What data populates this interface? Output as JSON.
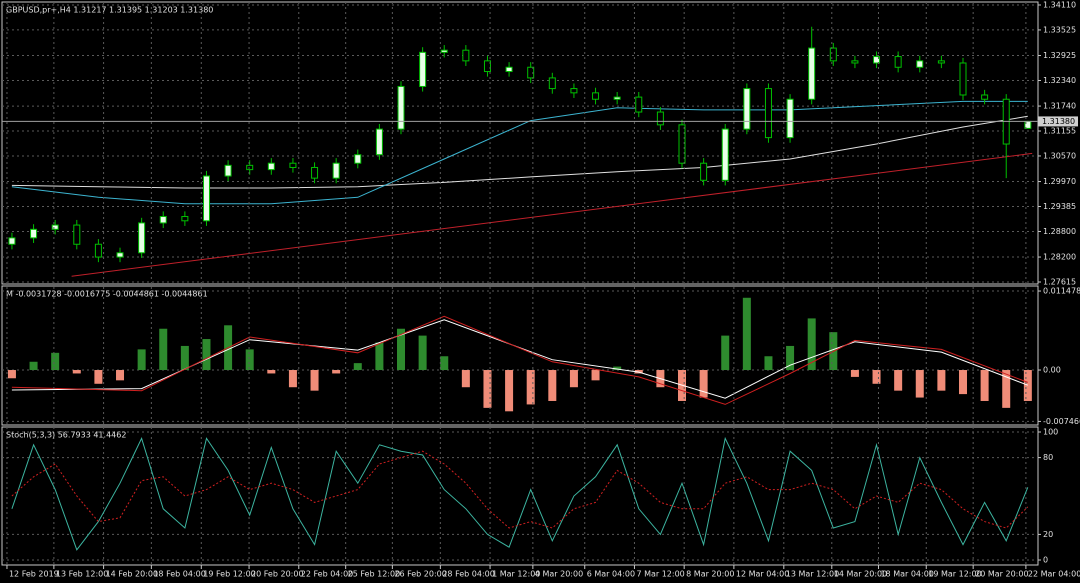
{
  "chart_data": [
    {
      "type": "candlestick",
      "title": "GBPUSD,pr+,H4  1.31217 1.31395 1.31203 1.31380",
      "open": [
        1.285,
        1.2865,
        1.2885,
        1.2895,
        1.285,
        1.282,
        1.283,
        1.29,
        1.2915,
        1.2905,
        1.301,
        1.3035,
        1.3025,
        1.304,
        1.303,
        1.3005,
        1.304,
        1.306,
        1.312,
        1.322,
        1.33,
        1.3305,
        1.328,
        1.3255,
        1.3265,
        1.324,
        1.3215,
        1.3205,
        1.319,
        1.3195,
        1.316,
        1.313,
        1.304,
        1.3,
        1.312,
        1.3215,
        1.31,
        1.319,
        1.331,
        1.328,
        1.3275,
        1.329,
        1.3265,
        1.328,
        1.3275,
        1.32,
        1.319,
        1.31217
      ],
      "high": [
        1.2877,
        1.2897,
        1.2907,
        1.2907,
        1.2862,
        1.2842,
        1.2912,
        1.2927,
        1.2927,
        1.3022,
        1.3047,
        1.3047,
        1.3052,
        1.3052,
        1.3042,
        1.3052,
        1.3072,
        1.3132,
        1.3232,
        1.3312,
        1.3317,
        1.3317,
        1.3292,
        1.3277,
        1.3277,
        1.3252,
        1.3227,
        1.3217,
        1.3207,
        1.3207,
        1.3172,
        1.3142,
        1.3052,
        1.3132,
        1.3227,
        1.3227,
        1.3202,
        1.336,
        1.3322,
        1.3292,
        1.3302,
        1.3302,
        1.3292,
        1.3292,
        1.3287,
        1.3212,
        1.3202,
        1.31395
      ],
      "low": [
        1.2838,
        1.2853,
        1.2873,
        1.2838,
        1.2808,
        1.2808,
        1.2818,
        1.2888,
        1.2893,
        1.2893,
        1.2998,
        1.3013,
        1.3013,
        1.3018,
        1.2993,
        1.2993,
        1.3028,
        1.3048,
        1.3108,
        1.3208,
        1.3288,
        1.3268,
        1.3243,
        1.3243,
        1.3228,
        1.3203,
        1.3193,
        1.3178,
        1.3178,
        1.3148,
        1.3118,
        1.3028,
        1.2988,
        1.2988,
        1.3108,
        1.3088,
        1.3088,
        1.3178,
        1.3268,
        1.3263,
        1.3263,
        1.3253,
        1.3253,
        1.3263,
        1.3188,
        1.3178,
        1.3005,
        1.31203
      ],
      "close": [
        1.2865,
        1.2885,
        1.2895,
        1.285,
        1.282,
        1.283,
        1.29,
        1.2915,
        1.2905,
        1.301,
        1.3035,
        1.3025,
        1.304,
        1.303,
        1.3005,
        1.304,
        1.306,
        1.312,
        1.322,
        1.33,
        1.3305,
        1.328,
        1.3255,
        1.3265,
        1.324,
        1.3215,
        1.3205,
        1.319,
        1.3195,
        1.316,
        1.313,
        1.304,
        1.3,
        1.312,
        1.3215,
        1.31,
        1.319,
        1.331,
        1.328,
        1.3275,
        1.329,
        1.3265,
        1.328,
        1.3275,
        1.32,
        1.319,
        1.3085,
        1.3138
      ],
      "up_fill": "#e8ffe8",
      "down_fill": "#000000",
      "candle_stroke": "#00c000",
      "lines": [
        {
          "color": "#e0e0e0",
          "x": [
            0,
            4,
            8,
            12,
            16,
            20,
            24,
            28,
            32,
            36,
            40,
            44,
            47
          ],
          "values": [
            1.2988,
            1.2985,
            1.2982,
            1.2982,
            1.2985,
            1.2995,
            1.3008,
            1.302,
            1.303,
            1.305,
            1.3085,
            1.3125,
            1.315
          ]
        },
        {
          "color": "#3cb4d0",
          "x": [
            0,
            4,
            8,
            12,
            16,
            20,
            24,
            28,
            32,
            36,
            40,
            44,
            47
          ],
          "values": [
            1.2985,
            1.296,
            1.2945,
            1.2945,
            1.296,
            1.305,
            1.314,
            1.317,
            1.3165,
            1.3165,
            1.3175,
            1.3185,
            1.3185
          ]
        },
        {
          "color": "#c0202a",
          "x": [
            2.76,
            47.2
          ],
          "values": [
            1.2775,
            1.3063
          ]
        }
      ],
      "last_price": {
        "value": 1.3138,
        "label": "1.31380"
      },
      "xlim": [
        -0.46,
        47.47
      ],
      "ylim": [
        1.27568,
        1.3418
      ],
      "yticks": [
        {
          "value": 1.3411,
          "label": "1.34110"
        },
        1.33525,
        1.32925,
        {
          "value": 1.3234,
          "label": "1.32340"
        },
        {
          "value": 1.3174,
          "label": "1.31740"
        },
        1.31155,
        {
          "value": 1.3057,
          "label": "1.30570"
        },
        {
          "value": 1.2997,
          "label": "1.29970"
        },
        1.29385,
        {
          "value": 1.288,
          "label": "1.28800"
        },
        {
          "value": 1.282,
          "label": "1.28200"
        },
        1.27615
      ],
      "grid": true
    },
    {
      "type": "bar",
      "title": "M -0.0031728 -0.0016775 -0.0044861 -0.0044861",
      "values": [
        -0.0012,
        0.0012,
        0.0025,
        -0.0005,
        -0.002,
        -0.0015,
        0.003,
        0.006,
        0.0035,
        0.0045,
        0.0065,
        0.003,
        -0.0005,
        -0.0025,
        -0.003,
        -0.0005,
        0.001,
        0.004,
        0.006,
        0.005,
        0.002,
        -0.0025,
        -0.0055,
        -0.006,
        -0.005,
        -0.0045,
        -0.0025,
        -0.0015,
        0.0005,
        -0.0005,
        -0.0025,
        -0.0045,
        -0.004,
        0.005,
        0.0105,
        0.002,
        0.0035,
        0.0075,
        0.0055,
        -0.001,
        -0.002,
        -0.003,
        -0.004,
        -0.003,
        -0.0035,
        -0.0045,
        -0.0055,
        -0.0045
      ],
      "positive_color": "#2e8b2e",
      "negative_color": "#f08c78",
      "lines": [
        {
          "color": "#ffffff",
          "x": [
            0,
            6,
            11,
            16,
            20,
            25,
            29,
            33,
            36,
            39,
            43,
            47
          ],
          "values": [
            -0.0029,
            -0.0027,
            0.0044,
            0.0029,
            0.0073,
            0.0015,
            -0.0003,
            -0.0041,
            0.0007,
            0.0041,
            0.0026,
            -0.0022
          ]
        },
        {
          "color": "#d02020",
          "x": [
            0,
            6,
            11,
            16,
            20,
            25,
            29,
            33,
            36,
            39,
            43,
            47
          ],
          "values": [
            -0.0025,
            -0.003,
            0.0048,
            0.0025,
            0.0078,
            0.0012,
            -0.001,
            -0.005,
            -0.0005,
            0.0043,
            0.003,
            -0.0018
          ]
        }
      ],
      "xlim": [
        -0.46,
        47.47
      ],
      "ylim": [
        -0.00799,
        0.01221
      ],
      "yticks": [
        0.0114787,
        {
          "value": 0,
          "label": "0.00"
        },
        -0.007466
      ],
      "grid": true
    },
    {
      "type": "line",
      "title": "Stoch(5,3,3) 56.7933 41.4462",
      "series": [
        {
          "color": "#3cb4a0",
          "dash": false,
          "values": [
            40,
            90,
            55,
            8,
            30,
            60,
            95,
            40,
            25,
            95,
            70,
            35,
            88,
            40,
            12,
            85,
            60,
            90,
            85,
            82,
            55,
            40,
            20,
            10,
            55,
            15,
            50,
            65,
            90,
            40,
            20,
            60,
            12,
            95,
            60,
            15,
            85,
            70,
            25,
            30,
            90,
            20,
            80,
            45,
            12,
            45,
            15,
            56.79
          ]
        },
        {
          "color": "#d02020",
          "dash": true,
          "values": [
            50,
            65,
            75,
            50,
            30,
            33,
            62,
            65,
            50,
            55,
            65,
            55,
            60,
            55,
            45,
            50,
            55,
            75,
            80,
            85,
            75,
            60,
            40,
            25,
            30,
            25,
            40,
            45,
            70,
            60,
            45,
            40,
            40,
            60,
            65,
            55,
            55,
            60,
            55,
            40,
            50,
            45,
            60,
            55,
            40,
            30,
            25,
            41.45
          ]
        }
      ],
      "xlim": [
        -0.46,
        47.47
      ],
      "ylim": [
        -3.9,
        103.9
      ],
      "yticks": [
        0,
        20,
        80,
        100
      ],
      "grid": true,
      "xticks": [
        {
          "value": -0.23,
          "label": "12 Feb 2019"
        },
        {
          "value": 1.94,
          "label": "13 Feb 12:00"
        },
        {
          "value": 4.24,
          "label": "14 Feb 20:00"
        },
        {
          "value": 6.45,
          "label": "18 Feb 04:00"
        },
        {
          "value": 8.76,
          "label": "19 Feb 12:00"
        },
        {
          "value": 10.97,
          "label": "20 Feb 20:00"
        },
        {
          "value": 13.27,
          "label": "22 Feb 04:00"
        },
        {
          "value": 15.44,
          "label": "25 Feb 12:00"
        },
        {
          "value": 17.6,
          "label": "26 Feb 20:00"
        },
        {
          "value": 19.82,
          "label": "28 Feb 04:00"
        },
        {
          "value": 22.12,
          "label": "1 Mar 12:00"
        },
        {
          "value": 24.1,
          "label": "4 Mar 20:00"
        },
        {
          "value": 26.5,
          "label": "6 Mar 04:00"
        },
        {
          "value": 28.8,
          "label": "7 Mar 12:00"
        },
        {
          "value": 31.1,
          "label": "8 Mar 20:00"
        },
        {
          "value": 33.4,
          "label": "12 Mar 04:00"
        },
        {
          "value": 35.71,
          "label": "13 Mar 12:00"
        },
        {
          "value": 37.93,
          "label": "14 Mar 20:00"
        },
        {
          "value": 40.09,
          "label": "18 Mar 04:00"
        },
        {
          "value": 42.3,
          "label": "19 Mar 12:00"
        },
        {
          "value": 44.47,
          "label": "20 Mar 20:00"
        },
        {
          "value": 46.91,
          "label": "22 Mar 04:00"
        }
      ]
    }
  ]
}
